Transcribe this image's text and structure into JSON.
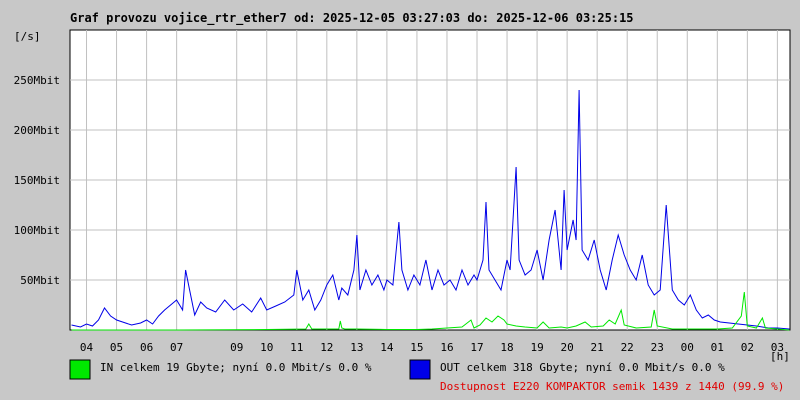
{
  "chart_data": {
    "type": "line",
    "title": "Graf provozu vojice_rtr_ether7 od: 2025-12-05 03:27:03 do: 2025-12-06 03:25:15",
    "ylabel": "[/s]",
    "xlabel": "[h]",
    "ylim": [
      0,
      300
    ],
    "y_unit": "Mbit",
    "y_ticks": [
      {
        "value": 50,
        "label": "50Mbit"
      },
      {
        "value": 100,
        "label": "100Mbit"
      },
      {
        "value": 150,
        "label": "150Mbit"
      },
      {
        "value": 200,
        "label": "200Mbit"
      },
      {
        "value": 250,
        "label": "250Mbit"
      }
    ],
    "x_ticks": [
      {
        "hour": 4,
        "label": "04"
      },
      {
        "hour": 5,
        "label": "05"
      },
      {
        "hour": 6,
        "label": "06"
      },
      {
        "hour": 7,
        "label": "07"
      },
      {
        "hour": 9,
        "label": "09"
      },
      {
        "hour": 10,
        "label": "10"
      },
      {
        "hour": 11,
        "label": "11"
      },
      {
        "hour": 12,
        "label": "12"
      },
      {
        "hour": 13,
        "label": "13"
      },
      {
        "hour": 14,
        "label": "14"
      },
      {
        "hour": 15,
        "label": "15"
      },
      {
        "hour": 16,
        "label": "16"
      },
      {
        "hour": 17,
        "label": "17"
      },
      {
        "hour": 18,
        "label": "18"
      },
      {
        "hour": 19,
        "label": "19"
      },
      {
        "hour": 20,
        "label": "20"
      },
      {
        "hour": 21,
        "label": "21"
      },
      {
        "hour": 22,
        "label": "22"
      },
      {
        "hour": 23,
        "label": "23"
      },
      {
        "hour": 24,
        "label": "00"
      },
      {
        "hour": 25,
        "label": "01"
      },
      {
        "hour": 26,
        "label": "02"
      },
      {
        "hour": 27,
        "label": "03"
      }
    ],
    "x_range_hours": [
      3.45,
      27.42
    ],
    "grid": true,
    "series": [
      {
        "name": "IN",
        "color": "#00e800",
        "values_mbit": [
          [
            3.5,
            0
          ],
          [
            7.0,
            0
          ],
          [
            10.0,
            0.5
          ],
          [
            11.3,
            1
          ],
          [
            11.4,
            6
          ],
          [
            11.5,
            1
          ],
          [
            12.4,
            1
          ],
          [
            12.45,
            9
          ],
          [
            12.5,
            2
          ],
          [
            12.6,
            1
          ],
          [
            13.0,
            1
          ],
          [
            14.0,
            0.5
          ],
          [
            15.0,
            0.5
          ],
          [
            15.5,
            1
          ],
          [
            16.0,
            2
          ],
          [
            16.5,
            3
          ],
          [
            16.8,
            10
          ],
          [
            16.9,
            2
          ],
          [
            17.1,
            5
          ],
          [
            17.3,
            12
          ],
          [
            17.5,
            8
          ],
          [
            17.7,
            14
          ],
          [
            17.9,
            10
          ],
          [
            18.0,
            6
          ],
          [
            18.3,
            4
          ],
          [
            18.6,
            3
          ],
          [
            19.0,
            2
          ],
          [
            19.2,
            8
          ],
          [
            19.4,
            2
          ],
          [
            19.8,
            3
          ],
          [
            20.0,
            2
          ],
          [
            20.3,
            4
          ],
          [
            20.6,
            8
          ],
          [
            20.8,
            3
          ],
          [
            21.2,
            4
          ],
          [
            21.4,
            10
          ],
          [
            21.6,
            6
          ],
          [
            21.8,
            20
          ],
          [
            21.9,
            5
          ],
          [
            22.3,
            2
          ],
          [
            22.8,
            3
          ],
          [
            22.9,
            20
          ],
          [
            23.0,
            4
          ],
          [
            23.5,
            1
          ],
          [
            24.0,
            1
          ],
          [
            25.0,
            1
          ],
          [
            25.5,
            2
          ],
          [
            25.8,
            14
          ],
          [
            25.9,
            38
          ],
          [
            26.0,
            4
          ],
          [
            26.3,
            2
          ],
          [
            26.5,
            12
          ],
          [
            26.6,
            2
          ],
          [
            27.0,
            1
          ],
          [
            27.4,
            0
          ]
        ]
      },
      {
        "name": "OUT",
        "color": "#0000e8",
        "values_mbit": [
          [
            3.5,
            5
          ],
          [
            3.8,
            3
          ],
          [
            4.0,
            6
          ],
          [
            4.2,
            4
          ],
          [
            4.4,
            10
          ],
          [
            4.6,
            22
          ],
          [
            4.8,
            14
          ],
          [
            5.0,
            10
          ],
          [
            5.2,
            8
          ],
          [
            5.5,
            5
          ],
          [
            5.8,
            7
          ],
          [
            6.0,
            10
          ],
          [
            6.2,
            6
          ],
          [
            6.4,
            14
          ],
          [
            6.6,
            20
          ],
          [
            6.8,
            25
          ],
          [
            7.0,
            30
          ],
          [
            7.2,
            20
          ],
          [
            7.3,
            60
          ],
          [
            7.4,
            45
          ],
          [
            7.6,
            15
          ],
          [
            7.8,
            28
          ],
          [
            8.0,
            22
          ],
          [
            8.3,
            18
          ],
          [
            8.6,
            30
          ],
          [
            8.9,
            20
          ],
          [
            9.2,
            26
          ],
          [
            9.5,
            18
          ],
          [
            9.8,
            32
          ],
          [
            10.0,
            20
          ],
          [
            10.3,
            24
          ],
          [
            10.6,
            28
          ],
          [
            10.9,
            35
          ],
          [
            11.0,
            60
          ],
          [
            11.2,
            30
          ],
          [
            11.4,
            40
          ],
          [
            11.6,
            20
          ],
          [
            11.8,
            30
          ],
          [
            12.0,
            45
          ],
          [
            12.2,
            55
          ],
          [
            12.4,
            30
          ],
          [
            12.5,
            42
          ],
          [
            12.7,
            35
          ],
          [
            12.9,
            60
          ],
          [
            13.0,
            95
          ],
          [
            13.1,
            40
          ],
          [
            13.3,
            60
          ],
          [
            13.5,
            45
          ],
          [
            13.7,
            55
          ],
          [
            13.9,
            40
          ],
          [
            14.0,
            50
          ],
          [
            14.2,
            45
          ],
          [
            14.4,
            108
          ],
          [
            14.5,
            60
          ],
          [
            14.7,
            40
          ],
          [
            14.9,
            55
          ],
          [
            15.1,
            45
          ],
          [
            15.3,
            70
          ],
          [
            15.5,
            40
          ],
          [
            15.7,
            60
          ],
          [
            15.9,
            45
          ],
          [
            16.1,
            50
          ],
          [
            16.3,
            40
          ],
          [
            16.5,
            60
          ],
          [
            16.7,
            45
          ],
          [
            16.9,
            55
          ],
          [
            17.0,
            50
          ],
          [
            17.2,
            70
          ],
          [
            17.3,
            128
          ],
          [
            17.4,
            60
          ],
          [
            17.6,
            50
          ],
          [
            17.8,
            40
          ],
          [
            18.0,
            70
          ],
          [
            18.1,
            60
          ],
          [
            18.3,
            163
          ],
          [
            18.4,
            70
          ],
          [
            18.6,
            55
          ],
          [
            18.8,
            60
          ],
          [
            19.0,
            80
          ],
          [
            19.2,
            50
          ],
          [
            19.4,
            90
          ],
          [
            19.6,
            120
          ],
          [
            19.8,
            60
          ],
          [
            19.9,
            140
          ],
          [
            20.0,
            80
          ],
          [
            20.2,
            110
          ],
          [
            20.3,
            90
          ],
          [
            20.4,
            240
          ],
          [
            20.5,
            80
          ],
          [
            20.7,
            70
          ],
          [
            20.9,
            90
          ],
          [
            21.1,
            60
          ],
          [
            21.3,
            40
          ],
          [
            21.5,
            70
          ],
          [
            21.7,
            95
          ],
          [
            21.9,
            75
          ],
          [
            22.1,
            60
          ],
          [
            22.3,
            50
          ],
          [
            22.5,
            75
          ],
          [
            22.7,
            45
          ],
          [
            22.9,
            35
          ],
          [
            23.1,
            40
          ],
          [
            23.3,
            125
          ],
          [
            23.5,
            40
          ],
          [
            23.7,
            30
          ],
          [
            23.9,
            25
          ],
          [
            24.1,
            35
          ],
          [
            24.3,
            20
          ],
          [
            24.5,
            12
          ],
          [
            24.7,
            15
          ],
          [
            24.9,
            10
          ],
          [
            25.1,
            8
          ],
          [
            25.4,
            7
          ],
          [
            25.7,
            6
          ],
          [
            26.0,
            5
          ],
          [
            26.3,
            4
          ],
          [
            26.5,
            3
          ],
          [
            26.7,
            2
          ],
          [
            27.0,
            2
          ],
          [
            27.4,
            1
          ]
        ]
      }
    ]
  },
  "legend": {
    "in_text": "IN celkem 19 Gbyte; nyní    0.0 Mbit/s 0.0 %",
    "out_text": "OUT celkem 318 Gbyte; nyní    0.0 Mbit/s 0.0 %",
    "availability_text": "Dostupnost E220 KOMPAKTOR semik 1439 z 1440 (99.9 %)",
    "in_color": "#00e800",
    "out_color": "#0000e8",
    "availability_color": "#e00000"
  }
}
